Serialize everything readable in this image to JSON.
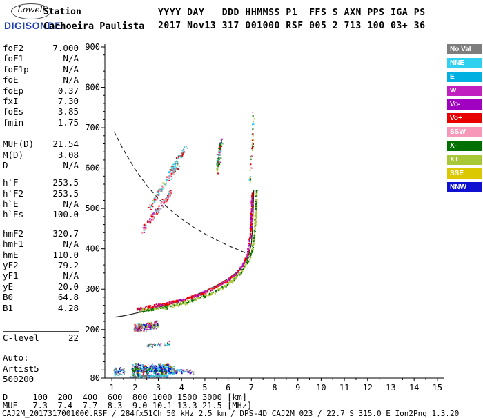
{
  "header": {
    "logo": {
      "line1": "Lowell",
      "line2": "DIGISONDE"
    },
    "station_label": "Station",
    "station_name": "Cachoeira Paulista",
    "columns_line": "YYYY DAY   DDD HHMMSS P1  FFS S AXN PPS IGA PS",
    "values_line": "2017 Nov13 317 001000 RSF 005 2 713 100 03+ 36"
  },
  "params": {
    "groups": [
      {
        "gap": 0,
        "rows": [
          [
            "foF2",
            "7.000"
          ],
          [
            "foF1",
            "N/A"
          ],
          [
            "foF1p",
            "N/A"
          ],
          [
            "foE",
            "N/A"
          ],
          [
            "foEp",
            "0.37"
          ],
          [
            "fxI",
            "7.30"
          ],
          [
            "foEs",
            "3.85"
          ],
          [
            "fmin",
            "1.75"
          ]
        ]
      },
      {
        "gap": 16,
        "rows": [
          [
            "MUF(D)",
            "21.54"
          ],
          [
            "M(D)",
            "3.08"
          ],
          [
            "D",
            "N/A"
          ]
        ]
      },
      {
        "gap": 10,
        "rows": [
          [
            "h`F",
            "253.5"
          ],
          [
            "h`F2",
            "253.5"
          ],
          [
            "h`E",
            "N/A"
          ],
          [
            "h`Es",
            "100.0"
          ]
        ]
      },
      {
        "gap": 12,
        "rows": [
          [
            "hmF2",
            "320.7"
          ],
          [
            "hmF1",
            "N/A"
          ],
          [
            "hmE",
            "110.0"
          ],
          [
            "yF2",
            "79.2"
          ],
          [
            "yF1",
            "N/A"
          ],
          [
            "yE",
            "20.0"
          ],
          [
            "B0",
            "64.8"
          ],
          [
            "B1",
            "4.28"
          ]
        ]
      },
      {
        "gap": 26,
        "boxed": true,
        "rows": [
          [
            "C-level",
            "22"
          ]
        ]
      },
      {
        "gap": 12,
        "rows": [
          [
            "Auto:",
            ""
          ],
          [
            "Artist5",
            ""
          ],
          [
            "500200",
            ""
          ]
        ]
      }
    ]
  },
  "legend": {
    "items": [
      {
        "label": "No Val",
        "color": "#7d7d7d"
      },
      {
        "label": "NNE",
        "color": "#30d0f0"
      },
      {
        "label": "E",
        "color": "#00b0e0"
      },
      {
        "label": "W",
        "color": "#c020c0"
      },
      {
        "label": "Vo-",
        "color": "#a000c0"
      },
      {
        "label": "Vo+",
        "color": "#e80000"
      },
      {
        "label": "SSW",
        "color": "#f898b8"
      },
      {
        "label": "X-",
        "color": "#007000"
      },
      {
        "label": "X+",
        "color": "#a8c838"
      },
      {
        "label": "SSE",
        "color": "#dcc800"
      },
      {
        "label": "NNW",
        "color": "#1010d0"
      }
    ]
  },
  "chart_data": {
    "type": "scatter",
    "x_axis": {
      "unit": "MHz",
      "min": 0.7,
      "max": 15.3,
      "ticks": [
        1,
        2,
        3,
        4,
        5,
        6,
        7,
        8,
        9,
        10,
        11,
        12,
        13,
        14,
        15
      ]
    },
    "y_axis": {
      "unit": "km",
      "min": 80,
      "max": 900,
      "tick_labels": [
        900,
        800,
        700,
        600,
        500,
        400,
        300,
        200,
        80
      ],
      "minor_step": 20
    },
    "curves": [
      {
        "name": "muf-transmission-curve",
        "style": "dashed",
        "color": "#222222",
        "points": [
          [
            1.1,
            690
          ],
          [
            1.5,
            645
          ],
          [
            2.0,
            597
          ],
          [
            2.5,
            557
          ],
          [
            3.0,
            524
          ],
          [
            3.5,
            497
          ],
          [
            4.0,
            474
          ],
          [
            4.5,
            454
          ],
          [
            5.0,
            437
          ],
          [
            5.5,
            422
          ],
          [
            6.0,
            408
          ],
          [
            6.5,
            396
          ],
          [
            6.9,
            386
          ],
          [
            7.1,
            380
          ]
        ]
      },
      {
        "name": "true-height-profile",
        "style": "solid",
        "color": "#222222",
        "points": [
          [
            1.15,
            231
          ],
          [
            1.5,
            234
          ],
          [
            2.0,
            240
          ],
          [
            2.5,
            247
          ],
          [
            3.0,
            255
          ],
          [
            3.5,
            263
          ],
          [
            4.0,
            272
          ],
          [
            4.5,
            283
          ],
          [
            5.0,
            295
          ],
          [
            5.5,
            309
          ],
          [
            6.0,
            326
          ],
          [
            6.4,
            343
          ],
          [
            6.7,
            363
          ],
          [
            6.9,
            387
          ],
          [
            7.0,
            413
          ],
          [
            7.05,
            452
          ],
          [
            7.08,
            497
          ],
          [
            7.1,
            545
          ]
        ]
      }
    ],
    "traces": [
      {
        "name": "es-layer",
        "points": [
          [
            1.85,
            103
          ],
          [
            2.4,
            102
          ],
          [
            3.0,
            103
          ],
          [
            3.6,
            104
          ]
        ],
        "n": 460,
        "jx": 0.06,
        "jy": 16,
        "colors": [
          "#30d0f0",
          "#30d0f0",
          "#30d0f0",
          "#1010d0",
          "#1010d0",
          "#c020c0",
          "#c020c0",
          "#e80000",
          "#e80000",
          "#7d7d7d",
          "#a8c838",
          "#007000",
          "#f898b8",
          "#00b0e0"
        ]
      },
      {
        "name": "es-layer-edge",
        "points": [
          [
            3.6,
            100
          ],
          [
            4.5,
            96
          ]
        ],
        "n": 55,
        "jx": 0.05,
        "jy": 8,
        "colors": [
          "#30d0f0",
          "#7d7d7d",
          "#c020c0",
          "#1010d0"
        ]
      },
      {
        "name": "es-base",
        "points": [
          [
            1.8,
            86
          ],
          [
            2.6,
            86
          ],
          [
            3.4,
            86
          ]
        ],
        "n": 130,
        "jx": 0.05,
        "jy": 4,
        "colors": [
          "#7d7d7d",
          "#7d7d7d",
          "#30d0f0",
          "#1010d0",
          "#007000"
        ]
      },
      {
        "name": "noise-left",
        "points": [
          [
            1.05,
            98
          ],
          [
            1.5,
            98
          ]
        ],
        "n": 45,
        "jx": 0.05,
        "jy": 12,
        "colors": [
          "#7d7d7d",
          "#30d0f0",
          "#1010d0"
        ]
      },
      {
        "name": "es-second-hop",
        "points": [
          [
            1.95,
            205
          ],
          [
            2.45,
            208
          ],
          [
            2.95,
            213
          ]
        ],
        "n": 160,
        "jx": 0.05,
        "jy": 12,
        "colors": [
          "#a8c838",
          "#a8c838",
          "#e80000",
          "#e80000",
          "#30d0f0",
          "#30d0f0",
          "#c020c0",
          "#1010d0",
          "#7d7d7d"
        ]
      },
      {
        "name": "e-region-sparse",
        "points": [
          [
            2.5,
            160
          ],
          [
            3.0,
            164
          ],
          [
            3.45,
            168
          ]
        ],
        "n": 36,
        "jx": 0.05,
        "jy": 7,
        "colors": [
          "#7d7d7d",
          "#30d0f0",
          "#007000",
          "#c020c0"
        ]
      },
      {
        "name": "f-trace-o",
        "points": [
          [
            2.05,
            252
          ],
          [
            2.5,
            256
          ],
          [
            3.0,
            261
          ],
          [
            3.5,
            267
          ],
          [
            4.0,
            274
          ],
          [
            4.5,
            283
          ],
          [
            5.0,
            294
          ],
          [
            5.5,
            308
          ],
          [
            6.0,
            325
          ],
          [
            6.3,
            339
          ],
          [
            6.6,
            360
          ],
          [
            6.78,
            382
          ],
          [
            6.88,
            408
          ],
          [
            6.94,
            442
          ],
          [
            6.98,
            482
          ],
          [
            7.0,
            515
          ],
          [
            7.02,
            540
          ]
        ],
        "n": 520,
        "jx": 0.04,
        "jy": 5,
        "colors": [
          "#e80000",
          "#e80000",
          "#e80000",
          "#e80000",
          "#e80000",
          "#e80000",
          "#f898b8",
          "#f898b8",
          "#c020c0",
          "#a000c0"
        ]
      },
      {
        "name": "f-trace-x",
        "points": [
          [
            2.2,
            247
          ],
          [
            2.7,
            251
          ],
          [
            3.2,
            256
          ],
          [
            3.7,
            262
          ],
          [
            4.2,
            269
          ],
          [
            4.7,
            278
          ],
          [
            5.2,
            289
          ],
          [
            5.7,
            303
          ],
          [
            6.1,
            319
          ],
          [
            6.5,
            341
          ],
          [
            6.8,
            367
          ],
          [
            7.0,
            396
          ],
          [
            7.1,
            432
          ],
          [
            7.15,
            472
          ],
          [
            7.18,
            512
          ],
          [
            7.2,
            545
          ]
        ],
        "n": 380,
        "jx": 0.04,
        "jy": 5,
        "colors": [
          "#a8c838",
          "#a8c838",
          "#a8c838",
          "#a8c838",
          "#a8c838",
          "#007000",
          "#007000"
        ]
      },
      {
        "name": "f-second-hop-a",
        "points": [
          [
            2.3,
            448
          ],
          [
            2.9,
            492
          ],
          [
            3.5,
            542
          ]
        ],
        "n": 120,
        "jx": 0.05,
        "jy": 11,
        "colors": [
          "#f898b8",
          "#f898b8",
          "#e80000",
          "#e80000",
          "#c020c0",
          "#7d7d7d",
          "#30d0f0"
        ]
      },
      {
        "name": "f-second-hop-b",
        "points": [
          [
            2.6,
            505
          ],
          [
            3.2,
            558
          ],
          [
            3.85,
            612
          ]
        ],
        "n": 100,
        "jx": 0.05,
        "jy": 11,
        "colors": [
          "#e80000",
          "#e80000",
          "#30d0f0",
          "#30d0f0",
          "#f898b8",
          "#a8c838"
        ]
      },
      {
        "name": "f-second-hop-c",
        "points": [
          [
            3.3,
            578
          ],
          [
            3.8,
            622
          ],
          [
            4.2,
            652
          ]
        ],
        "n": 65,
        "jx": 0.05,
        "jy": 10,
        "colors": [
          "#30d0f0",
          "#30d0f0",
          "#e80000",
          "#f898b8",
          "#7d7d7d"
        ]
      },
      {
        "name": "f-second-hop-cusp",
        "points": [
          [
            5.5,
            598
          ],
          [
            5.62,
            638
          ],
          [
            5.7,
            668
          ]
        ],
        "n": 85,
        "jx": 0.07,
        "jy": 13,
        "colors": [
          "#e80000",
          "#e80000",
          "#a8c838",
          "#a8c838",
          "#30d0f0",
          "#c020c0",
          "#007000"
        ]
      },
      {
        "name": "spread-above-cusp",
        "points": [
          [
            6.92,
            565
          ],
          [
            7.0,
            645
          ],
          [
            7.06,
            722
          ],
          [
            7.1,
            758
          ]
        ],
        "n": 40,
        "jx": 0.06,
        "jy": 15,
        "colors": [
          "#e80000",
          "#a8c838",
          "#30d0f0",
          "#f898b8",
          "#007000"
        ]
      }
    ]
  },
  "footer": {
    "d_label": "D",
    "muf_label": "MUF",
    "distances_km": [
      100,
      200,
      400,
      600,
      800,
      1000,
      1500,
      3000
    ],
    "muf_mhz": [
      7.3,
      7.4,
      7.7,
      8.3,
      9.0,
      10.1,
      13.3,
      21.5
    ],
    "d_row": "D     100  200  400  600  800 1000 1500 3000 [km]",
    "muf_row": "MUF   7.3  7.4  7.7  8.3  9.0 10.1 13.3 21.5 [MHz]",
    "file_line": "CAJ2M_2017317001000.RSF / 284fx51Ch 50 kHz 2.5 km / DPS-4D CAJ2M 023 / 22.7 S 315.0 E Ion2Png 1.3.20"
  }
}
